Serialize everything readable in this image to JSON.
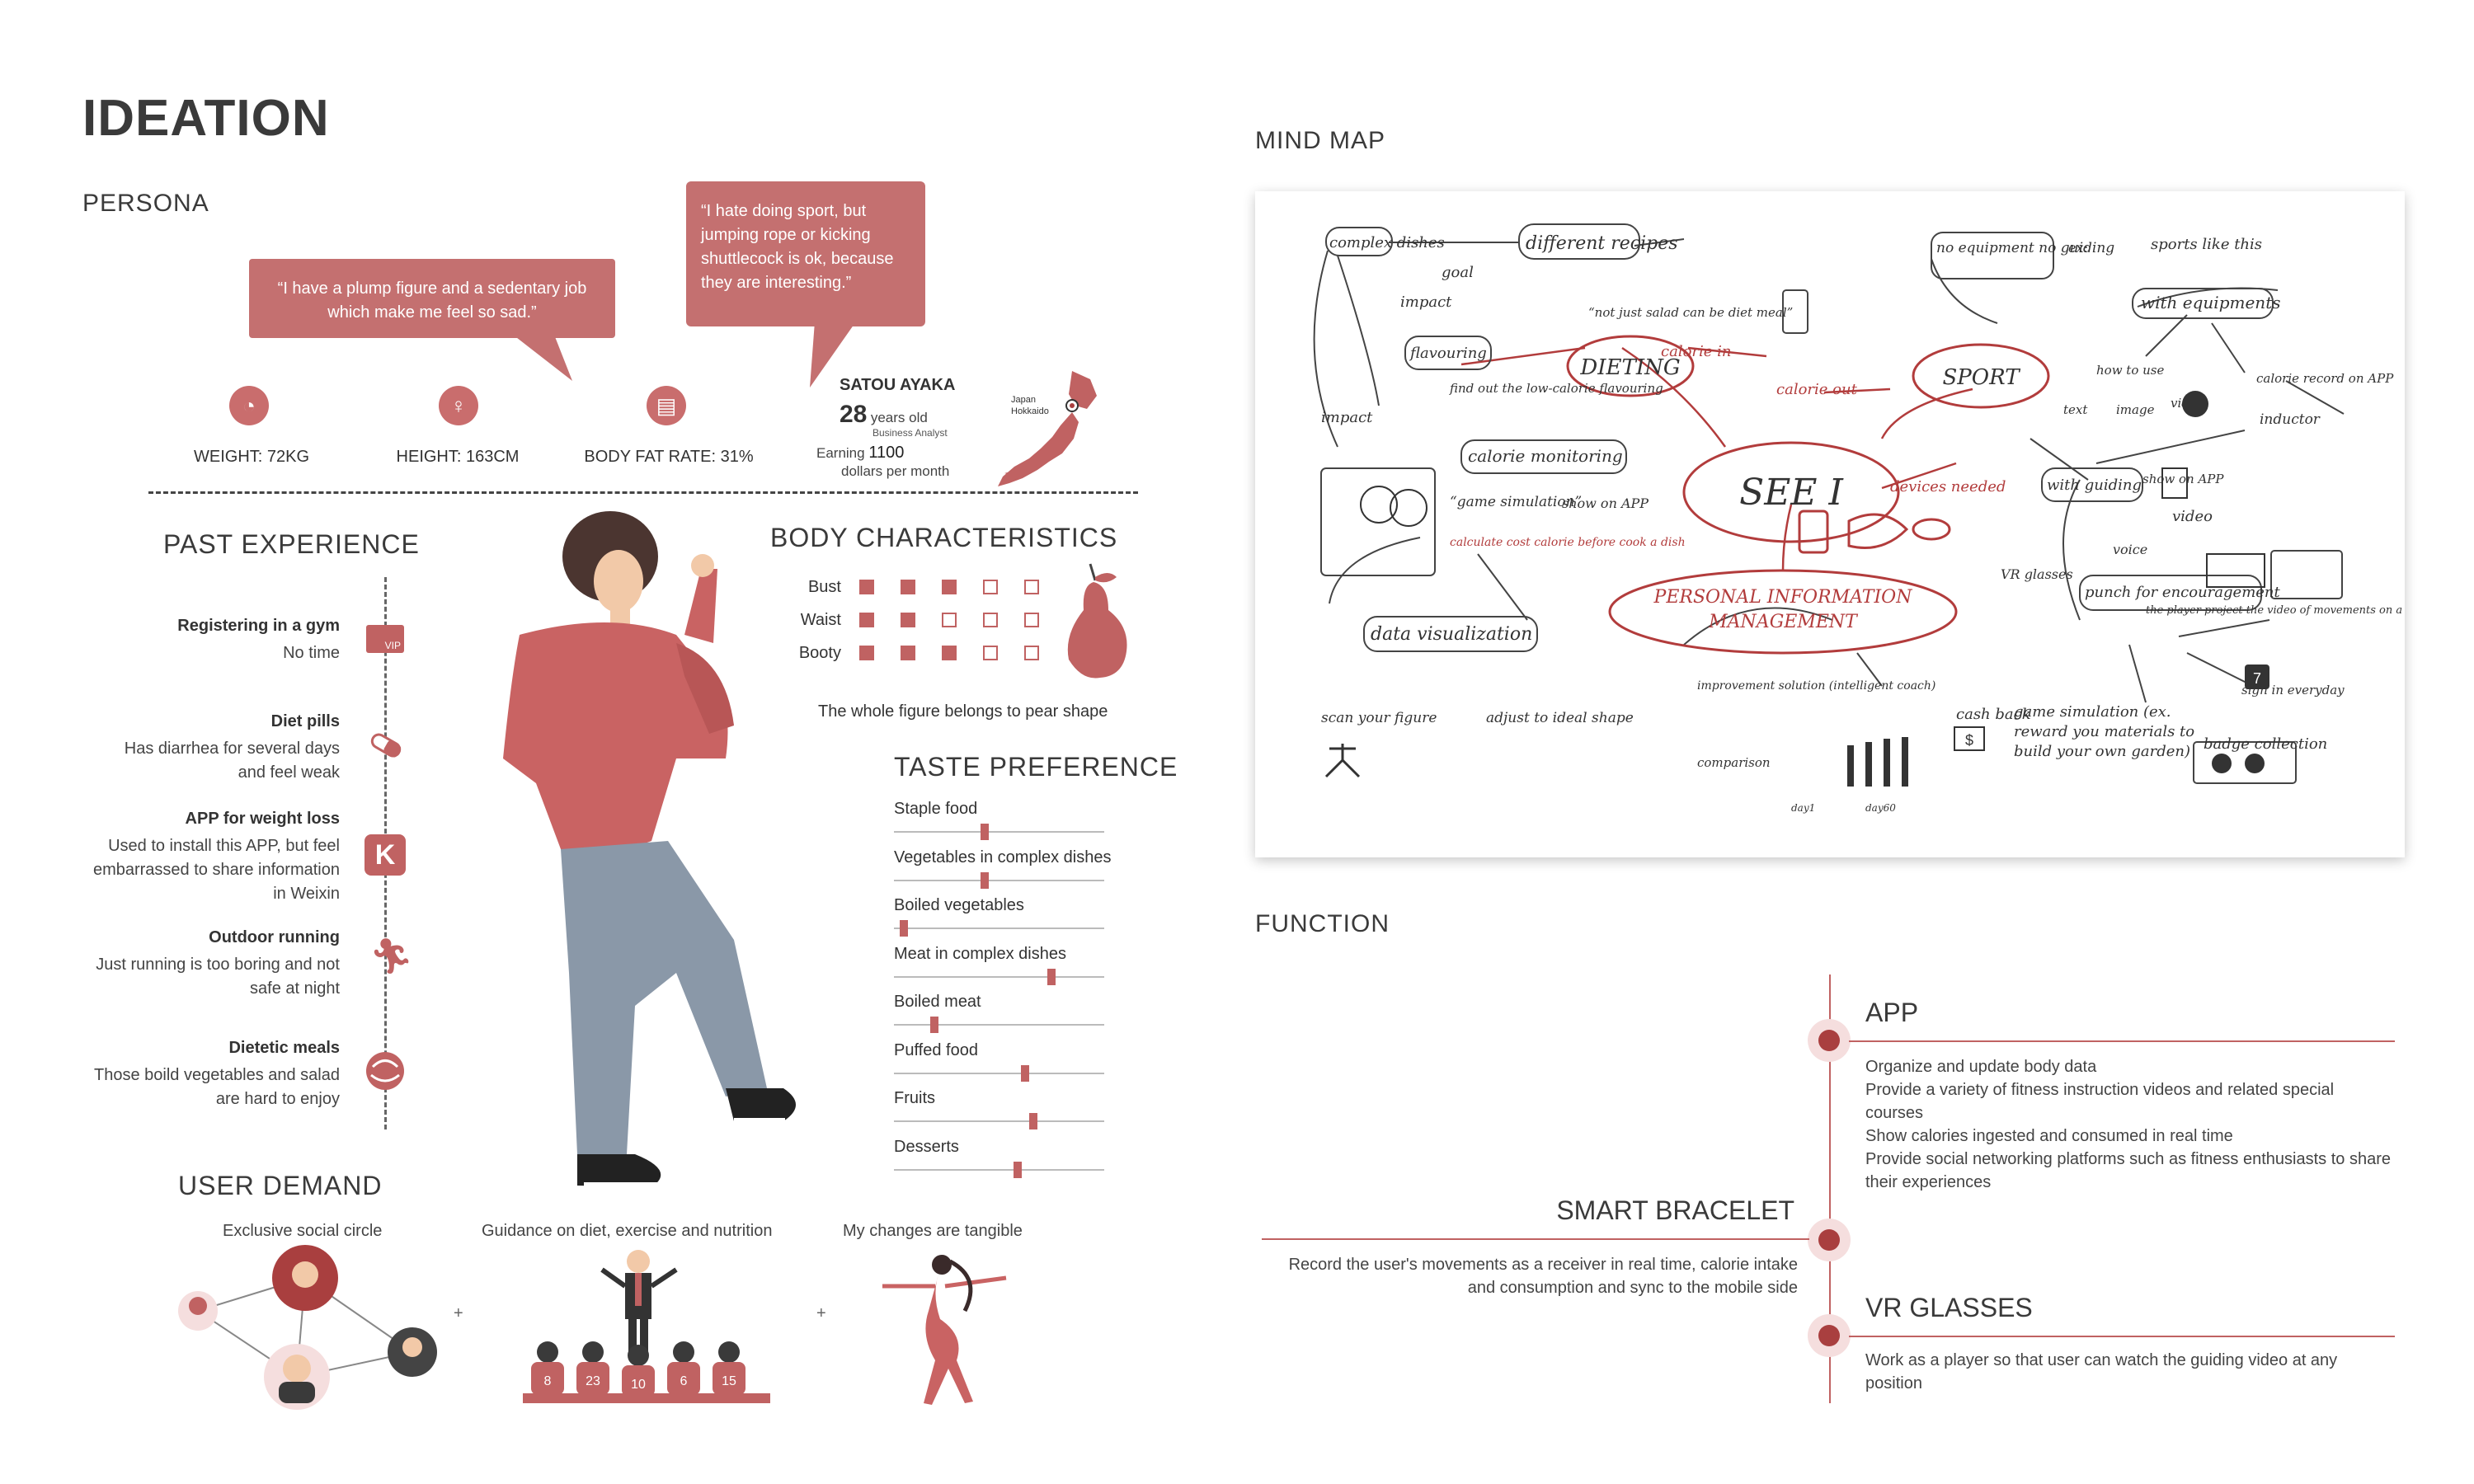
{
  "page": {
    "title": "IDEATION"
  },
  "persona": {
    "heading": "PERSONA",
    "quote1": "“I have a plump figure and a sedentary job which make me feel so sad.”",
    "quote2": "“I hate doing sport, but jumping rope or kicking shuttlecock is ok, because they are interesting.”",
    "stats": [
      {
        "label": "WEIGHT: 72KG",
        "icon": "scale-icon"
      },
      {
        "label": "HEIGHT: 163CM",
        "icon": "person-height-icon"
      },
      {
        "label": "BODY FAT RATE: 31%",
        "icon": "body-fat-icon"
      }
    ],
    "name": "SATOU AYAKA",
    "age_number": "28",
    "age_suffix": "years old",
    "occupation": "Business Analyst",
    "earning_prefix": "Earning",
    "earning_value": "1100",
    "earning_suffix": "dollars per month",
    "map_label_country": "Japan",
    "map_label_region": "Hokkaido"
  },
  "past_experience": {
    "heading": "PAST EXPERIENCE",
    "items": [
      {
        "title": "Registering in a gym",
        "text": "No time",
        "icon": "vip-card-icon"
      },
      {
        "title": "Diet pills",
        "text": "Has diarrhea for several days and feel weak",
        "icon": "pill-icon"
      },
      {
        "title": "APP for weight loss",
        "text": "Used to install this APP, but feel embarrassed to share information in Weixin",
        "icon": "keep-app-icon"
      },
      {
        "title": "Outdoor running",
        "text": "Just running is too boring and not safe at night",
        "icon": "runner-icon"
      },
      {
        "title": "Dietetic meals",
        "text": "Those boild vegetables and salad are hard to enjoy",
        "icon": "salad-icon"
      }
    ]
  },
  "body_characteristics": {
    "heading": "BODY CHARACTERISTICS",
    "rows": [
      {
        "label": "Bust",
        "filled": 3,
        "total": 5
      },
      {
        "label": "Waist",
        "filled": 2,
        "total": 5
      },
      {
        "label": "Booty",
        "filled": 3,
        "total": 5
      }
    ],
    "caption": "The whole figure belongs to pear shape"
  },
  "taste_preference": {
    "heading": "TASTE PREFERENCE",
    "items": [
      {
        "label": "Staple food",
        "level": 0.43
      },
      {
        "label": "Vegetables in complex dishes",
        "level": 0.43
      },
      {
        "label": "Boiled vegetables",
        "level": 0.03
      },
      {
        "label": "Meat in complex dishes",
        "level": 0.76
      },
      {
        "label": "Boiled meat",
        "level": 0.18
      },
      {
        "label": "Puffed food",
        "level": 0.63
      },
      {
        "label": "Fruits",
        "level": 0.67
      },
      {
        "label": "Desserts",
        "level": 0.59
      }
    ]
  },
  "user_demand": {
    "heading": "USER DEMAND",
    "items": [
      {
        "label": "Exclusive social circle"
      },
      {
        "label": "Guidance on diet, exercise and nutrition"
      },
      {
        "label": "My changes are tangible"
      }
    ],
    "plus": "+",
    "jersey_numbers": [
      "8",
      "23",
      "10",
      "6",
      "15"
    ]
  },
  "mind_map": {
    "heading": "MIND MAP",
    "center": "SEE I",
    "nodes": {
      "dieting": "DIETING",
      "sport": "SPORT",
      "personal_info": "PERSONAL INFORMATION MANAGEMENT",
      "complex_dishes": "complex dishes",
      "different_recipes": "different recipes",
      "goal": "goal",
      "impact1": "impact",
      "impact2": "impact",
      "flavouring": "flavouring",
      "find_out": "find out the low-calorie flavouring",
      "not_just_salad": "“not just salad can be diet meal”",
      "calorie_in": "calorie in",
      "calorie_out": "calorie out",
      "calorie_monitoring": "calorie monitoring",
      "game_simulation": "“game simulation”",
      "calculate": "calculate cost calorie before cook a dish",
      "show_on_app1": "show on APP",
      "no_equipment": "no equipment no guiding",
      "ex": "ex:",
      "sports_like_this": "sports like this",
      "with_equipments": "with equipments",
      "how_to_use": "how to use",
      "text": "text",
      "image": "image",
      "video1": "video",
      "calorie_record": "calorie record on APP",
      "inductor": "inductor",
      "devices_needed": "devices needed",
      "with_guiding": "with guiding",
      "show_on_app2": "show on APP",
      "video2": "video",
      "voice": "voice",
      "vr_glasses": "VR glasses",
      "player_project": "the player project the video of movements on a wall",
      "data_visualization": "data visualization",
      "scan_figure": "scan your figure",
      "adjust": "adjust to ideal shape",
      "improvement": "improvement solution (intelligent coach)",
      "comparison": "comparison",
      "day1": "day1",
      "day60": "day60",
      "encouragement": "punch for encouragement",
      "sign_in": "sign in everyday",
      "cash_back": "cash back",
      "game_sim2": "game simulation (ex. reward you materials to build your own garden)",
      "badge": "badge collection",
      "calendar_num": "7",
      "dollar": "$"
    }
  },
  "function": {
    "heading": "FUNCTION",
    "app_title": "APP",
    "app_lines": [
      "Organize and update body data",
      "Provide a variety of fitness instruction videos and related special courses",
      "Show calories ingested and consumed in real time",
      "Provide social networking platforms such as fitness enthusiasts to share their experiences"
    ],
    "bracelet_title": "SMART BRACELET",
    "bracelet_text": "Record the user's movements as a receiver in real time, calorie intake and consumption and sync to the mobile side",
    "vr_title": "VR GLASSES",
    "vr_text": "Work as a player so that user can watch the guiding video at any position"
  },
  "colors": {
    "accent": "#c06262",
    "bubble": "#c47070",
    "dark_accent": "#a93f3f"
  }
}
